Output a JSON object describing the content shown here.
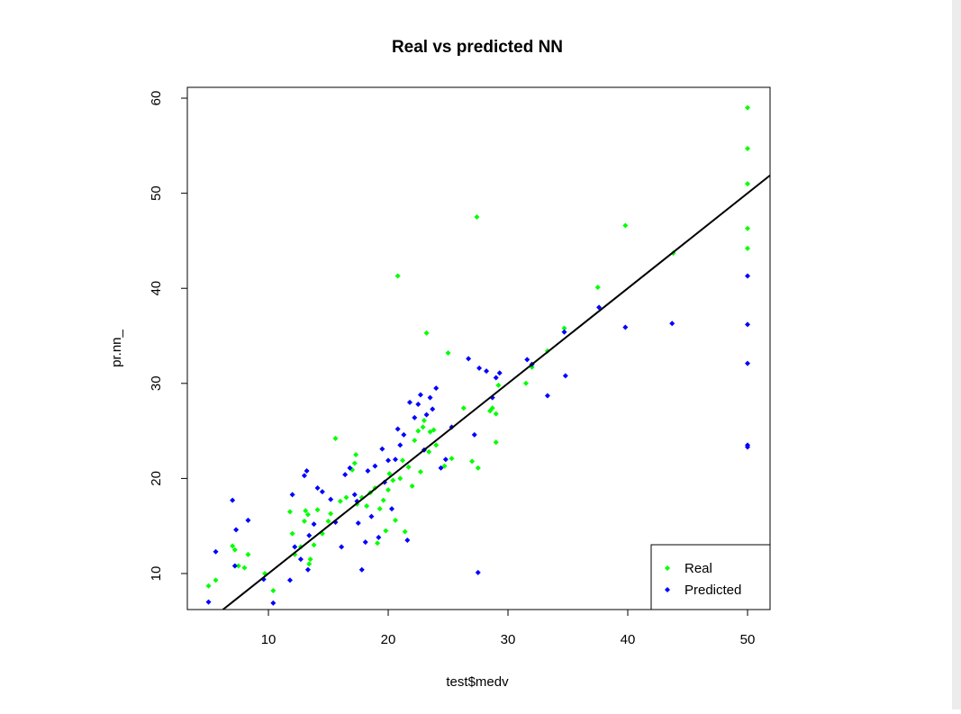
{
  "chart_data": {
    "type": "scatter",
    "title": "Real vs predicted NN",
    "x_label": "test$medv",
    "y_label": "pr.nn_",
    "xlim": [
      3.23,
      51.88
    ],
    "ylim": [
      6.21,
      61.14
    ],
    "xticks": [
      10,
      20,
      30,
      40,
      50
    ],
    "yticks": [
      10,
      20,
      30,
      40,
      50,
      60
    ],
    "legend_position": "bottomright",
    "line": {
      "intercept": 0,
      "slope": 1,
      "color": "#000000"
    },
    "series": [
      {
        "name": "Real",
        "color": "#00ff00",
        "x": [
          5,
          5.6,
          7,
          7.2,
          7.5,
          8,
          8.3,
          9.7,
          10.4,
          11.8,
          12,
          12.2,
          12.7,
          13,
          13.1,
          13.3,
          13.4,
          13.5,
          13.8,
          14.1,
          14.5,
          15,
          15.2,
          15.6,
          16,
          16.5,
          17,
          17.2,
          17.3,
          17.4,
          17.8,
          18.2,
          18.5,
          18.9,
          19.1,
          19.3,
          19.6,
          19.8,
          20,
          20.1,
          20.4,
          20.6,
          20.8,
          21,
          21.2,
          21.4,
          21.7,
          22,
          22.2,
          22.5,
          22.7,
          22.9,
          23,
          23.2,
          23.4,
          23.5,
          23.8,
          24,
          24.7,
          25,
          25.3,
          26.3,
          27,
          27.4,
          27.5,
          28.5,
          28.7,
          29,
          29,
          29.2,
          31.5,
          32,
          33.3,
          34.7,
          37.5,
          39.8,
          43.8,
          50,
          50,
          50,
          50,
          50
        ],
        "y": [
          8.7,
          9.3,
          12.9,
          12.5,
          10.8,
          10.6,
          12,
          10,
          8.2,
          16.5,
          14.2,
          12,
          12.8,
          15.5,
          16.6,
          16.2,
          11,
          11.5,
          13,
          16.7,
          14.2,
          15.5,
          16.3,
          24.2,
          17.6,
          18,
          20.9,
          21.6,
          22.5,
          17.3,
          18,
          17.1,
          18.5,
          19,
          13.2,
          16.8,
          17.7,
          14.5,
          18.8,
          20.5,
          19.8,
          15.6,
          41.3,
          20,
          21.9,
          14.4,
          21.2,
          19.2,
          24,
          25,
          20.7,
          25.4,
          26.1,
          35.3,
          22.8,
          24.9,
          25.1,
          23.5,
          21.3,
          33.2,
          22.1,
          27.4,
          21.8,
          47.5,
          21.1,
          27.1,
          27.4,
          26.8,
          23.8,
          29.8,
          30,
          31.7,
          33.4,
          35.8,
          40.1,
          46.6,
          43.7,
          59,
          54.7,
          51,
          46.3,
          44.2
        ]
      },
      {
        "name": "Predicted",
        "color": "#0000ff",
        "x": [
          5,
          5.6,
          7,
          7.2,
          7.3,
          8.3,
          9.6,
          10.4,
          11.8,
          12,
          12.2,
          12.7,
          13,
          13.2,
          13.3,
          13.4,
          13.8,
          14.1,
          14.5,
          15.2,
          15.6,
          16.1,
          16.4,
          16.8,
          17.2,
          17.4,
          17.8,
          17.5,
          18.1,
          18.3,
          18.6,
          18.9,
          19.2,
          19.5,
          19.7,
          20,
          20.3,
          20.6,
          20.8,
          21,
          21.3,
          21.6,
          21.8,
          22.2,
          22.5,
          22.7,
          23,
          23.2,
          23.5,
          23.7,
          24,
          24.4,
          24.8,
          25.3,
          26.7,
          27.2,
          27.5,
          27.6,
          28.2,
          28.7,
          29,
          29.3,
          31.6,
          32,
          33.3,
          34.7,
          34.8,
          37.6,
          39.8,
          43.7,
          50,
          50,
          50,
          50,
          50
        ],
        "y": [
          7,
          12.3,
          17.7,
          10.8,
          14.6,
          15.6,
          9.4,
          6.9,
          9.3,
          18.3,
          12.8,
          11.5,
          20.3,
          20.8,
          10.4,
          14,
          15.2,
          19,
          18.6,
          17.8,
          15.4,
          12.8,
          20.4,
          21.1,
          18.3,
          17.6,
          10.4,
          15.3,
          13.3,
          20.8,
          16,
          21.3,
          13.8,
          23.1,
          19.6,
          21.9,
          16.8,
          22,
          25.2,
          23.5,
          24.6,
          13.5,
          28,
          26.4,
          27.8,
          28.8,
          23,
          26.7,
          28.5,
          27.3,
          29.5,
          21.1,
          22,
          25.4,
          32.6,
          24.6,
          10.1,
          31.6,
          31.3,
          28.5,
          30.6,
          31.1,
          32.5,
          32,
          28.7,
          35.4,
          30.8,
          38,
          35.9,
          36.3,
          41.3,
          36.2,
          32.1,
          23.5,
          23.3
        ]
      }
    ]
  }
}
